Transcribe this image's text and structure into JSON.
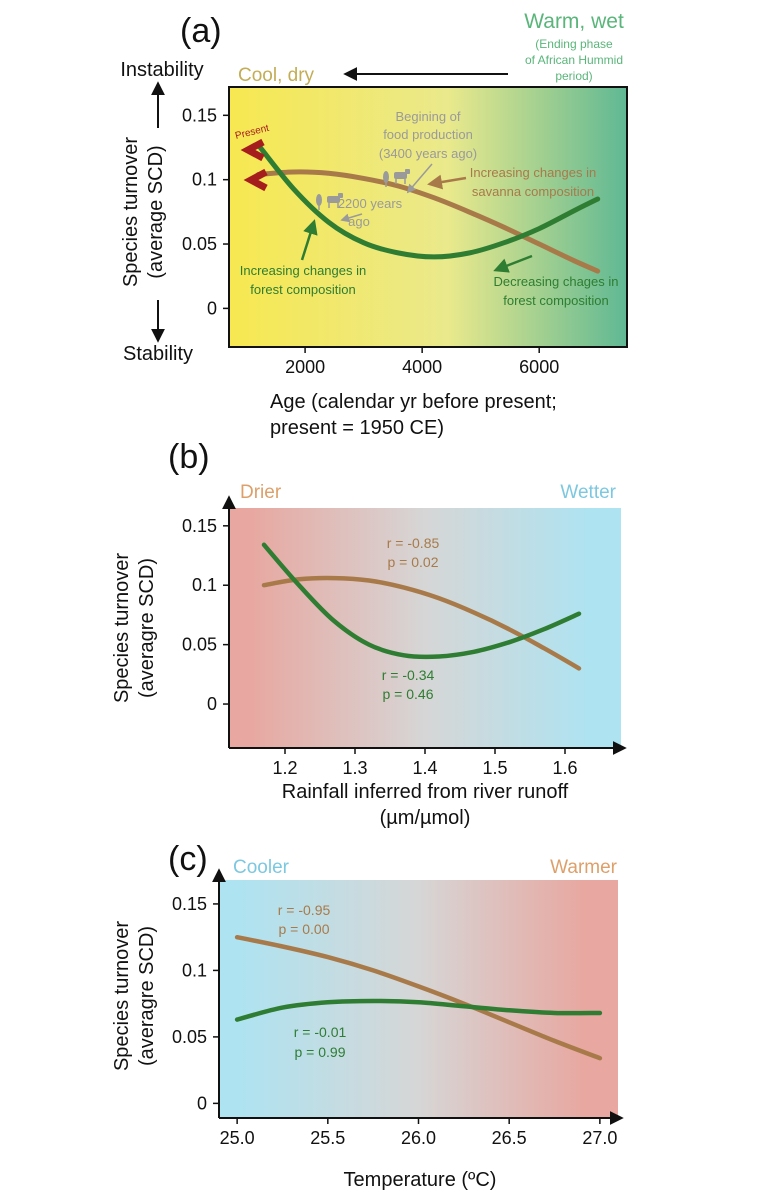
{
  "colors": {
    "savanna": "#a87a4a",
    "forest": "#2e7d32",
    "panel_a_left": "#f7e850",
    "panel_a_mid": "#eae98c",
    "panel_a_right": "#5fb894",
    "dry": "#e8a7a0",
    "wet": "#aee3f1",
    "mid": "#d6d6d6",
    "arrow_red": "#a61d1d",
    "note_gray": "#9a9a9a",
    "cool_dry_text": "#c3ad55",
    "warm_wet_text": "#5ab57a",
    "cooler_text": "#7cc8e0",
    "warmer_text": "#dda06a"
  },
  "chart_data": [
    {
      "type": "line",
      "panel_label": "(a)",
      "xlabel_line1": "Age (calendar yr before present;",
      "xlabel_line2": "present = 1950 CE)",
      "ylabel_line1": "Species turnover",
      "ylabel_line2": "(average SCD)",
      "xlim": [
        700,
        7500
      ],
      "ylim": [
        -0.03,
        0.172
      ],
      "xticks": [
        2000,
        4000,
        6000
      ],
      "xtick_labels": [
        "2000",
        "4000",
        "6000"
      ],
      "yticks": [
        0,
        0.05,
        0.1,
        0.15
      ],
      "ytick_labels": [
        "0",
        "0.05",
        "0.1",
        "0.15"
      ],
      "series": [
        {
          "name": "savanna",
          "x": [
            1200,
            1800,
            2400,
            3000,
            3600,
            4200,
            4800,
            5400,
            6000,
            6600,
            7000
          ],
          "values": [
            0.104,
            0.106,
            0.105,
            0.101,
            0.095,
            0.086,
            0.075,
            0.063,
            0.05,
            0.037,
            0.029
          ]
        },
        {
          "name": "forest",
          "x": [
            1200,
            1800,
            2400,
            3000,
            3600,
            4200,
            4800,
            5400,
            6000,
            6600,
            7000
          ],
          "values": [
            0.127,
            0.093,
            0.067,
            0.051,
            0.043,
            0.04,
            0.043,
            0.051,
            0.062,
            0.076,
            0.085
          ]
        }
      ],
      "labels": {
        "instability": "Instability",
        "stability": "Stability",
        "cool_dry": "Cool, dry",
        "warm_wet": "Warm, wet",
        "warm_wet_sub1": "(Ending phase",
        "warm_wet_sub2": "of African Hummid",
        "warm_wet_sub3": "period)",
        "present": "Present",
        "food_line1": "Begining of",
        "food_line2": "food production",
        "food_line3": "(3400 years ago)",
        "years2200_line1": "2200 years",
        "years2200_line2": "ago",
        "savanna_note_line1": "Increasing changes in",
        "savanna_note_line2": "savanna composition",
        "forest_inc_line1": "Increasing changes in",
        "forest_inc_line2": "forest composition",
        "forest_dec_line1": "Decreasing chages in",
        "forest_dec_line2": "forest composition"
      }
    },
    {
      "type": "line",
      "panel_label": "(b)",
      "xlabel_line1": "Rainfall inferred from river runoff",
      "xlabel_line2": "(µm/µmol)",
      "ylabel_line1": "Species turnover",
      "ylabel_line2": "(averagre SCD)",
      "xlim": [
        1.12,
        1.68
      ],
      "ylim": [
        -0.037,
        0.165
      ],
      "xticks": [
        1.2,
        1.3,
        1.4,
        1.5,
        1.6
      ],
      "xtick_labels": [
        "1.2",
        "1.3",
        "1.4",
        "1.5",
        "1.6"
      ],
      "yticks": [
        0,
        0.05,
        0.1,
        0.15
      ],
      "ytick_labels": [
        "0",
        "0.05",
        "0.1",
        "0.15"
      ],
      "series": [
        {
          "name": "savanna",
          "x": [
            1.17,
            1.22,
            1.27,
            1.32,
            1.37,
            1.42,
            1.47,
            1.52,
            1.57,
            1.62
          ],
          "values": [
            0.1,
            0.105,
            0.106,
            0.104,
            0.098,
            0.089,
            0.077,
            0.063,
            0.047,
            0.03
          ]
        },
        {
          "name": "forest",
          "x": [
            1.17,
            1.22,
            1.27,
            1.32,
            1.37,
            1.42,
            1.47,
            1.52,
            1.57,
            1.62
          ],
          "values": [
            0.134,
            0.1,
            0.07,
            0.05,
            0.041,
            0.04,
            0.044,
            0.052,
            0.063,
            0.076
          ]
        }
      ],
      "labels": {
        "left": "Drier",
        "right": "Wetter",
        "savanna_r": "r = -0.85",
        "savanna_p": "p = 0.02",
        "forest_r": "r = -0.34",
        "forest_p": "p = 0.46"
      }
    },
    {
      "type": "line",
      "panel_label": "(c)",
      "xlabel_line1": "Temperature (ºC)",
      "ylabel_line1": "Species turnover",
      "ylabel_line2": "(averagre SCD)",
      "xlim": [
        24.9,
        27.1
      ],
      "ylim": [
        -0.011,
        0.168
      ],
      "xticks": [
        25.0,
        25.5,
        26.0,
        26.5,
        27.0
      ],
      "xtick_labels": [
        "25.0",
        "25.5",
        "26.0",
        "26.5",
        "27.0"
      ],
      "yticks": [
        0,
        0.05,
        0.1,
        0.15
      ],
      "ytick_labels": [
        "0",
        "0.05",
        "0.1",
        "0.15"
      ],
      "series": [
        {
          "name": "savanna",
          "x": [
            25.0,
            25.25,
            25.5,
            25.75,
            26.0,
            26.25,
            26.5,
            26.75,
            27.0
          ],
          "values": [
            0.125,
            0.118,
            0.11,
            0.1,
            0.088,
            0.075,
            0.061,
            0.047,
            0.034
          ]
        },
        {
          "name": "forest",
          "x": [
            25.0,
            25.25,
            25.5,
            25.75,
            26.0,
            26.25,
            26.5,
            26.75,
            27.0
          ],
          "values": [
            0.063,
            0.072,
            0.076,
            0.077,
            0.076,
            0.073,
            0.07,
            0.068,
            0.068
          ]
        }
      ],
      "labels": {
        "left": "Cooler",
        "right": "Warmer",
        "savanna_r": "r = -0.95",
        "savanna_p": "p = 0.00",
        "forest_r": "r = -0.01",
        "forest_p": "p = 0.99"
      }
    }
  ]
}
